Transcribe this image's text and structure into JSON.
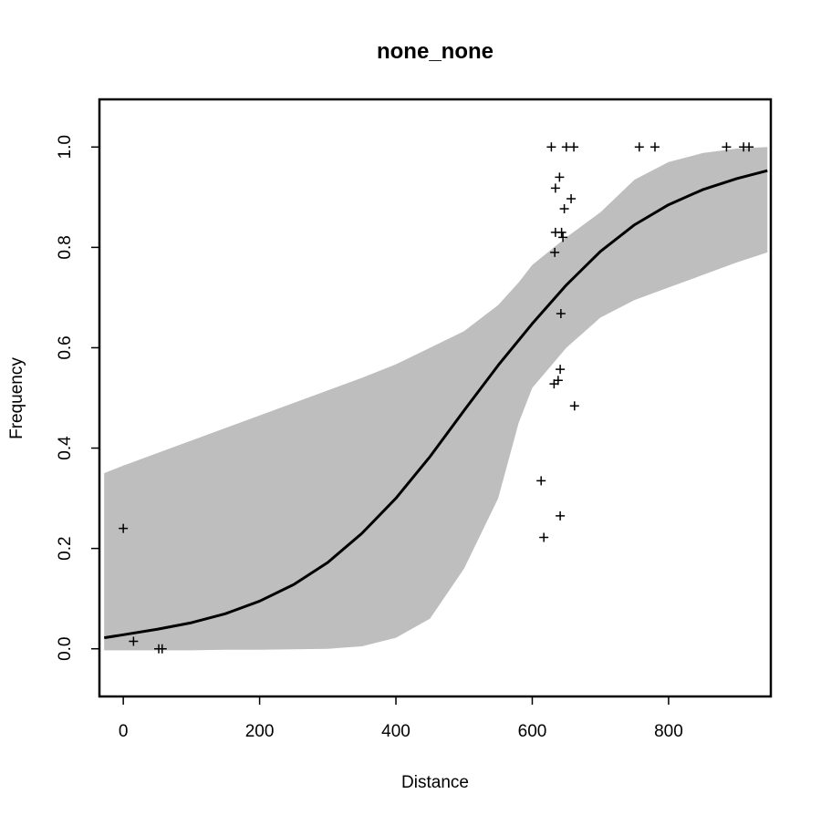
{
  "chart_data": {
    "type": "scatter",
    "title": "none_none",
    "xlabel": "Distance",
    "ylabel": "Frequency",
    "xlim": [
      -35,
      950
    ],
    "ylim": [
      -0.095,
      1.095
    ],
    "x_ticks": [
      0,
      200,
      400,
      600,
      800
    ],
    "x_tick_labels": [
      "0",
      "200",
      "400",
      "600",
      "800"
    ],
    "y_ticks": [
      0.0,
      0.2,
      0.4,
      0.6,
      0.8,
      1.0
    ],
    "y_tick_labels": [
      "0.0",
      "0.2",
      "0.4",
      "0.6",
      "0.8",
      "1.0"
    ],
    "grid": false,
    "point_marker": "+",
    "points": [
      {
        "x": 0,
        "y": 0.24
      },
      {
        "x": 15,
        "y": 0.015
      },
      {
        "x": 52,
        "y": 0.0
      },
      {
        "x": 57,
        "y": 0.0
      },
      {
        "x": 613,
        "y": 0.335
      },
      {
        "x": 617,
        "y": 0.222
      },
      {
        "x": 628,
        "y": 1.0
      },
      {
        "x": 632,
        "y": 0.528
      },
      {
        "x": 633,
        "y": 0.79
      },
      {
        "x": 634,
        "y": 0.83
      },
      {
        "x": 634,
        "y": 0.918
      },
      {
        "x": 638,
        "y": 0.535
      },
      {
        "x": 640,
        "y": 0.94
      },
      {
        "x": 641,
        "y": 0.265
      },
      {
        "x": 641,
        "y": 0.557
      },
      {
        "x": 642,
        "y": 0.668
      },
      {
        "x": 643,
        "y": 0.83
      },
      {
        "x": 645,
        "y": 0.82
      },
      {
        "x": 647,
        "y": 0.877
      },
      {
        "x": 650,
        "y": 1.0
      },
      {
        "x": 657,
        "y": 0.897
      },
      {
        "x": 661,
        "y": 1.0
      },
      {
        "x": 662,
        "y": 0.484
      },
      {
        "x": 757,
        "y": 1.0
      },
      {
        "x": 780,
        "y": 1.0
      },
      {
        "x": 885,
        "y": 1.0
      },
      {
        "x": 910,
        "y": 1.0
      },
      {
        "x": 918,
        "y": 1.0
      }
    ],
    "fit_line": {
      "x": [
        -28,
        0,
        50,
        100,
        150,
        200,
        250,
        300,
        350,
        400,
        450,
        500,
        550,
        600,
        650,
        700,
        750,
        800,
        850,
        900,
        945
      ],
      "y": [
        0.022,
        0.028,
        0.039,
        0.052,
        0.07,
        0.095,
        0.128,
        0.172,
        0.23,
        0.3,
        0.383,
        0.475,
        0.565,
        0.648,
        0.725,
        0.792,
        0.845,
        0.885,
        0.915,
        0.937,
        0.953
      ]
    },
    "confidence_band": {
      "x": [
        -28,
        0,
        50,
        100,
        150,
        200,
        250,
        300,
        350,
        400,
        450,
        500,
        550,
        580,
        600,
        650,
        700,
        750,
        800,
        850,
        900,
        945
      ],
      "upper": [
        0.35,
        0.365,
        0.39,
        0.415,
        0.44,
        0.465,
        0.49,
        0.515,
        0.54,
        0.567,
        0.6,
        0.633,
        0.685,
        0.73,
        0.765,
        0.82,
        0.87,
        0.935,
        0.97,
        0.988,
        0.997,
        1.0
      ],
      "lower": [
        -0.003,
        -0.003,
        -0.003,
        -0.003,
        -0.002,
        -0.002,
        -0.001,
        0.0,
        0.005,
        0.022,
        0.06,
        0.16,
        0.3,
        0.45,
        0.52,
        0.6,
        0.66,
        0.695,
        0.72,
        0.745,
        0.77,
        0.79
      ]
    },
    "colors": {
      "band": "#bebebe",
      "line": "#000000",
      "points": "#000000",
      "frame": "#000000"
    }
  }
}
